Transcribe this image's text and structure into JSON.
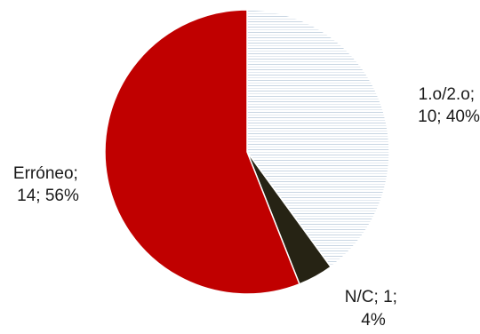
{
  "chart_data": {
    "type": "pie",
    "title": "",
    "slices": [
      {
        "label": "1.o/2.o",
        "value": 10,
        "percent": "40%",
        "label_lines": [
          "1.o/2.o;",
          "10; 40%"
        ],
        "color": "#ffffff",
        "pattern": "horizontal-lines",
        "pattern_color": "#c9d6e3"
      },
      {
        "label": "N/C",
        "value": 1,
        "percent": "4%",
        "label_lines": [
          "N/C; 1;",
          "4%"
        ],
        "color": "#262314"
      },
      {
        "label": "Erróneo",
        "value": 14,
        "percent": "56%",
        "label_lines": [
          "Erróneo;",
          "14; 56%"
        ],
        "color": "#c00000"
      }
    ],
    "start_angle_deg": 0,
    "direction": "clockwise",
    "slice_border_color": "#ffffff",
    "legend": "none"
  }
}
